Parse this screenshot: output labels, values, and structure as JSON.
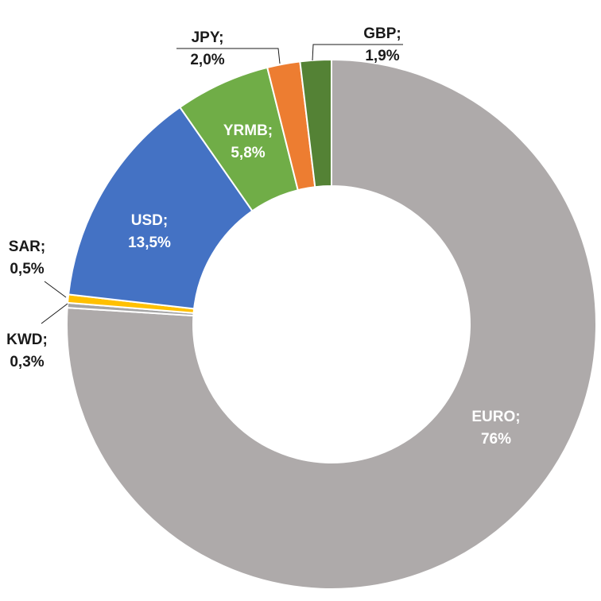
{
  "chart_data": {
    "type": "pie",
    "variant": "donut",
    "slices": [
      {
        "name": "EURO",
        "value": 76,
        "label_line1": "EURO;",
        "label_line2": "76%",
        "color": "#AEAAAA",
        "label_color": "#ffffff",
        "label_inside": true
      },
      {
        "name": "KWD",
        "value": 0.3,
        "label_line1": "KWD;",
        "label_line2": "0,3%",
        "color": "#A5A5A5",
        "label_color": "#1a1a1a",
        "label_inside": false
      },
      {
        "name": "SAR",
        "value": 0.5,
        "label_line1": "SAR;",
        "label_line2": "0,5%",
        "color": "#FFC000",
        "label_color": "#1a1a1a",
        "label_inside": false
      },
      {
        "name": "USD",
        "value": 13.5,
        "label_line1": "USD;",
        "label_line2": "13,5%",
        "color": "#4472C4",
        "label_color": "#ffffff",
        "label_inside": true
      },
      {
        "name": "YRMB",
        "value": 5.8,
        "label_line1": "YRMB;",
        "label_line2": "5,8%",
        "color": "#70AD47",
        "label_color": "#ffffff",
        "label_inside": true
      },
      {
        "name": "JPY",
        "value": 2.0,
        "label_line1": "JPY;",
        "label_line2": "2,0%",
        "color": "#ED7D31",
        "label_color": "#1a1a1a",
        "label_inside": false
      },
      {
        "name": "GBP",
        "value": 1.9,
        "label_line1": "GBP;",
        "label_line2": "1,9%",
        "color": "#548235",
        "label_color": "#1a1a1a",
        "label_inside": false
      }
    ],
    "start_angle_deg": 0,
    "direction": "clockwise",
    "legend": "none"
  }
}
